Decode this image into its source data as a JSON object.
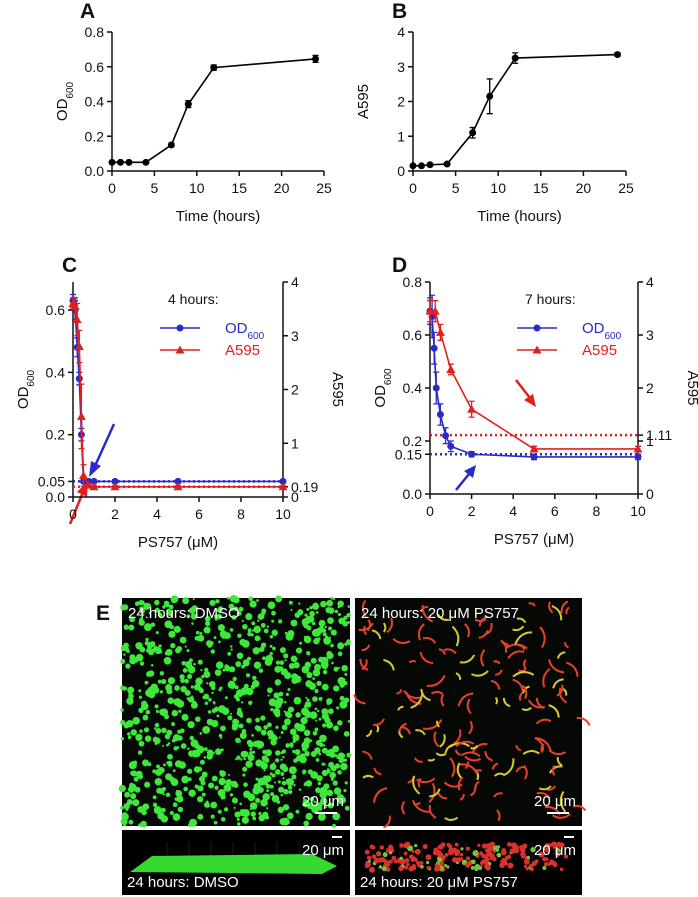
{
  "chart_data": [
    {
      "type": "line",
      "panel": "A",
      "xlabel": "Time (hours)",
      "ylabel": "OD",
      "ylabel_sub": "600",
      "xlim": [
        0,
        25
      ],
      "xticks": [
        0,
        5,
        10,
        15,
        20,
        25
      ],
      "ylim": [
        0,
        0.8
      ],
      "yticks": [
        {
          "value": 0,
          "label": "0.0"
        },
        0.2,
        0.4,
        0.6,
        0.8
      ],
      "series": [
        {
          "color": "#000000",
          "marker": "circle",
          "x": [
            0,
            1,
            2,
            4,
            7,
            9,
            12,
            24
          ],
          "values": [
            0.05,
            0.05,
            0.05,
            0.05,
            0.15,
            0.385,
            0.595,
            0.645
          ],
          "errors": [
            0.005,
            0.005,
            0.005,
            0.005,
            0.01,
            0.02,
            0.015,
            0.02
          ]
        }
      ]
    },
    {
      "type": "line",
      "panel": "B",
      "xlabel": "Time (hours)",
      "ylabel": "A595",
      "xlim": [
        0,
        25
      ],
      "xticks": [
        0,
        5,
        10,
        15,
        20,
        25
      ],
      "ylim": [
        0,
        4
      ],
      "yticks": [
        0,
        1,
        2,
        3,
        4
      ],
      "series": [
        {
          "color": "#000000",
          "marker": "circle",
          "x": [
            0,
            1,
            2,
            4,
            7,
            9,
            12,
            24
          ],
          "values": [
            0.15,
            0.15,
            0.18,
            0.2,
            1.1,
            2.15,
            3.25,
            3.35
          ],
          "errors": [
            0.02,
            0.02,
            0.02,
            0.03,
            0.15,
            0.5,
            0.15,
            0.05
          ]
        }
      ]
    },
    {
      "type": "line",
      "panel": "C",
      "xlabel": "PS757 (μM)",
      "ylabel": "OD",
      "ylabel_sub": "600",
      "y2label": "A595",
      "xlim": [
        0,
        10
      ],
      "xticks": [
        0,
        2,
        4,
        6,
        8,
        10
      ],
      "ylim": [
        0,
        0.69
      ],
      "yticks": [
        {
          "value": 0,
          "label": "0.0"
        },
        0.05,
        0.2,
        0.4,
        0.6
      ],
      "y2lim": [
        0,
        4
      ],
      "y2ticks": [
        0,
        0.19,
        1,
        2,
        3,
        4
      ],
      "legend_title": "4 hours:",
      "legend_loc": "upper right",
      "series": [
        {
          "name": "OD",
          "name_sub": "600",
          "color": "#2a2ac8",
          "marker": "circle",
          "x": [
            0,
            0.05,
            0.1,
            0.2,
            0.3,
            0.4,
            0.5,
            0.75,
            1,
            2,
            5,
            10
          ],
          "values": [
            0.63,
            0.62,
            0.6,
            0.48,
            0.38,
            0.2,
            0.05,
            0.05,
            0.05,
            0.05,
            0.05,
            0.05
          ],
          "errors": [
            0.02,
            0.02,
            0.03,
            0.03,
            0.02,
            0.02,
            0.005,
            0.005,
            0.005,
            0.005,
            0.005,
            0.005
          ]
        },
        {
          "name": "A595",
          "color": "#e0201c",
          "marker": "triangle",
          "axis": "y2",
          "x": [
            0,
            0.1,
            0.2,
            0.3,
            0.4,
            0.5,
            0.75,
            1,
            2,
            5,
            10
          ],
          "values": [
            3.6,
            3.55,
            3.3,
            2.8,
            1.5,
            0.4,
            0.22,
            0.19,
            0.19,
            0.19,
            0.19
          ],
          "errors": [
            0.1,
            0.15,
            0.3,
            0.3,
            0.6,
            0.2,
            0.03,
            0.02,
            0.02,
            0.02,
            0.02
          ]
        }
      ],
      "reference_lines": [
        {
          "value": 0.05,
          "color": "#2a2ac8"
        },
        {
          "value": 0.19,
          "axis": "y2",
          "color": "#e0201c"
        }
      ]
    },
    {
      "type": "line",
      "panel": "D",
      "xlabel": "PS757 (μM)",
      "ylabel": "OD",
      "ylabel_sub": "600",
      "y2label": "A595",
      "xlim": [
        0,
        10
      ],
      "xticks": [
        0,
        2,
        4,
        6,
        8,
        10
      ],
      "ylim": [
        0,
        0.8
      ],
      "yticks": [
        {
          "value": 0,
          "label": "0.0"
        },
        0.15,
        0.2,
        0.4,
        0.6,
        0.8
      ],
      "y2lim": [
        0,
        4
      ],
      "y2ticks": [
        0,
        1,
        1.11,
        2,
        3,
        4
      ],
      "legend_title": "7 hours:",
      "legend_loc": "upper right",
      "series": [
        {
          "name": "OD",
          "name_sub": "600",
          "color": "#2a2ac8",
          "marker": "circle",
          "x": [
            0,
            0.1,
            0.2,
            0.3,
            0.5,
            0.75,
            1,
            2,
            5,
            10
          ],
          "values": [
            0.69,
            0.67,
            0.55,
            0.4,
            0.3,
            0.22,
            0.18,
            0.15,
            0.14,
            0.14
          ],
          "errors": [
            0.05,
            0.08,
            0.06,
            0.06,
            0.04,
            0.03,
            0.02,
            0.01,
            0.01,
            0.01
          ]
        },
        {
          "name": "A595",
          "color": "#e0201c",
          "marker": "triangle",
          "axis": "y2",
          "x": [
            0,
            0.25,
            0.5,
            1,
            2,
            5,
            10
          ],
          "values": [
            3.45,
            3.45,
            3.05,
            2.35,
            1.6,
            0.85,
            0.85
          ],
          "errors": [
            0.2,
            0.2,
            0.15,
            0.1,
            0.15,
            0.05,
            0.05
          ]
        }
      ],
      "reference_lines": [
        {
          "value": 0.15,
          "color": "#2a2ac8"
        },
        {
          "value": 1.11,
          "axis": "y2",
          "color": "#e0201c"
        }
      ]
    }
  ],
  "panel_e": {
    "label": "E",
    "images": [
      {
        "caption": "24 hours: DMSO",
        "scale": "20 μm"
      },
      {
        "caption": "24 hours: 20 μM PS757",
        "scale": "20 μm"
      }
    ],
    "sections": [
      {
        "caption": "24 hours: DMSO",
        "scale": "20 μm"
      },
      {
        "caption": "24 hours: 20 μM PS757",
        "scale": "20 μm"
      }
    ]
  }
}
